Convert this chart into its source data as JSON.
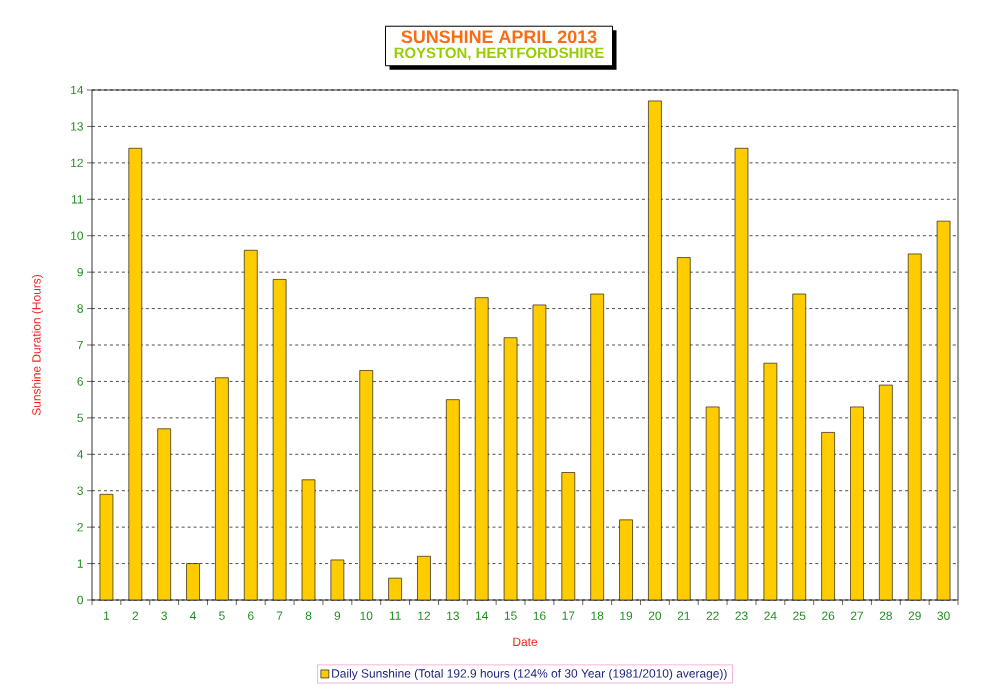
{
  "chart_data": {
    "type": "bar",
    "title": "SUNSHINE   APRIL 2013",
    "subtitle": "ROYSTON, HERTFORDSHIRE",
    "xlabel": "Date",
    "ylabel": "Sunshine Duration (Hours)",
    "categories": [
      "1",
      "2",
      "3",
      "4",
      "5",
      "6",
      "7",
      "8",
      "9",
      "10",
      "11",
      "12",
      "13",
      "14",
      "15",
      "16",
      "17",
      "18",
      "19",
      "20",
      "21",
      "22",
      "23",
      "24",
      "25",
      "26",
      "27",
      "28",
      "29",
      "30"
    ],
    "series": [
      {
        "name": "Daily Sunshine (Total 192.9 hours (124% of 30 Year (1981/2010) average))",
        "color": "#ffcc00",
        "values": [
          2.9,
          12.4,
          4.7,
          1.0,
          6.1,
          9.6,
          8.8,
          3.3,
          1.1,
          6.3,
          0.6,
          1.2,
          5.5,
          8.3,
          7.2,
          8.1,
          3.5,
          8.4,
          2.2,
          13.7,
          9.4,
          5.3,
          12.4,
          6.5,
          8.4,
          4.6,
          5.3,
          5.9,
          9.5,
          10.4
        ]
      }
    ],
    "ylim": [
      0,
      14
    ],
    "yticks": [
      0,
      1,
      2,
      3,
      4,
      5,
      6,
      7,
      8,
      9,
      10,
      11,
      12,
      13,
      14
    ],
    "grid": "y",
    "legend": "bottom"
  }
}
